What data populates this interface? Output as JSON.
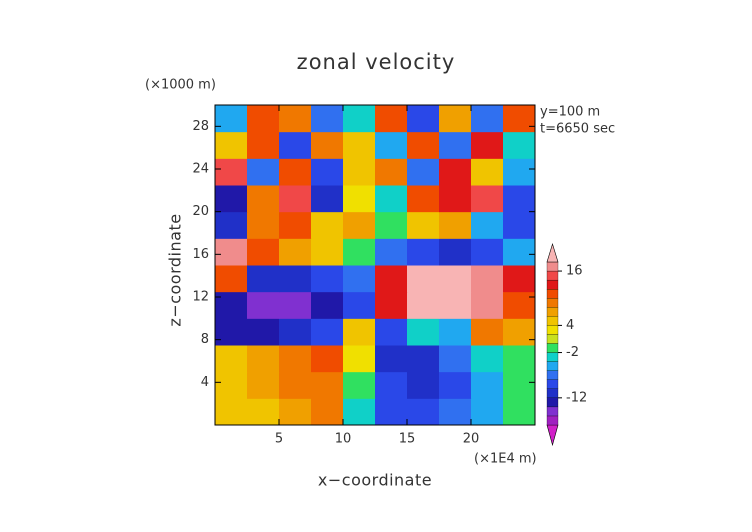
{
  "chart_data": {
    "type": "contour",
    "title": "zonal velocity",
    "xlabel": "x−coordinate",
    "ylabel": "z−coordinate",
    "x_unit": "(×1E4 m)",
    "y_unit": "(×1000 m)",
    "annotations": [
      "y=100 m",
      "t=6650 sec"
    ],
    "xlim": [
      0,
      25
    ],
    "xticks": [
      5,
      10,
      15,
      20
    ],
    "ylim": [
      0,
      30
    ],
    "yticks": [
      4,
      8,
      12,
      16,
      20,
      24,
      28
    ],
    "x": [
      1.25,
      3.75,
      6.25,
      8.75,
      11.25,
      13.75,
      16.25,
      18.75,
      21.25,
      23.75
    ],
    "y": [
      1.25,
      3.75,
      6.25,
      8.75,
      11.25,
      13.75,
      16.25,
      18.75,
      21.25,
      23.75,
      26.25,
      28.75
    ],
    "z": [
      [
        5,
        5,
        7,
        8,
        -4,
        -10,
        -10,
        -8,
        -6,
        -2
      ],
      [
        5,
        6,
        8,
        9,
        -2,
        -10,
        -12,
        -10,
        -6,
        -2
      ],
      [
        4,
        6,
        8,
        10,
        2,
        -12,
        -12,
        -8,
        -4,
        -2
      ],
      [
        -14,
        -14,
        -12,
        -10,
        4,
        -10,
        -4,
        -6,
        8,
        6
      ],
      [
        -14,
        -16,
        -16,
        -14,
        -10,
        12,
        18,
        18,
        16,
        10
      ],
      [
        10,
        -12,
        -12,
        -10,
        -8,
        12,
        18,
        18,
        16,
        12
      ],
      [
        16,
        10,
        6,
        4,
        -2,
        -8,
        -10,
        -12,
        -10,
        -6
      ],
      [
        -12,
        8,
        10,
        4,
        6,
        -2,
        4,
        6,
        -6,
        -10
      ],
      [
        -14,
        8,
        14,
        -12,
        2,
        -4,
        10,
        12,
        14,
        -10
      ],
      [
        14,
        -8,
        10,
        -10,
        4,
        8,
        -8,
        12,
        4,
        -6
      ],
      [
        4,
        10,
        -10,
        8,
        4,
        -6,
        10,
        -8,
        12,
        -4
      ],
      [
        -6,
        10,
        8,
        -8,
        -4,
        10,
        -10,
        6,
        -8,
        10
      ]
    ],
    "colorbar": {
      "levels": [
        -18,
        -16,
        -14,
        -12,
        -10,
        -8,
        -6,
        -4,
        -2,
        0,
        2,
        4,
        6,
        8,
        10,
        12,
        14,
        16,
        18
      ],
      "colors": [
        "#d020c8",
        "#a020c0",
        "#8030d0",
        "#2018a8",
        "#2030c8",
        "#2a48e8",
        "#3070f0",
        "#20a8f0",
        "#10d0c8",
        "#30e060",
        "#c8e020",
        "#f0e000",
        "#f0c400",
        "#f0a000",
        "#f07800",
        "#f04c00",
        "#e01818",
        "#f04848",
        "#f08c8c",
        "#f8b4b4"
      ],
      "ticks": [
        16,
        4,
        -2,
        -12
      ]
    }
  }
}
